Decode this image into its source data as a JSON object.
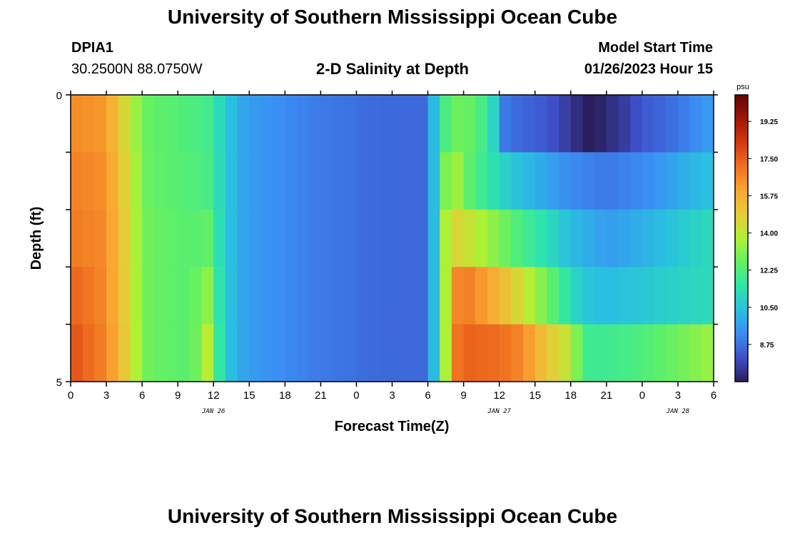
{
  "header": {
    "title": "University of Southern Mississippi Ocean Cube",
    "station_id": "DPIA1",
    "station_coords": "30.2500N  88.0750W",
    "plot_title": "2-D Salinity at Depth",
    "model_start_label": "Model Start Time",
    "model_start_value": "01/26/2023 Hour 15"
  },
  "footer": {
    "title": "University of Southern Mississippi Ocean Cube"
  },
  "chart_data": {
    "type": "heatmap",
    "title": "2-D Salinity at Depth",
    "xlabel": "Forecast Time(Z)",
    "ylabel": "Depth (ft)",
    "x_hours_range": [
      0,
      54
    ],
    "x_tick_labels": [
      "0",
      "3",
      "6",
      "9",
      "12",
      "15",
      "18",
      "21",
      "0",
      "3",
      "6",
      "9",
      "12",
      "15",
      "18",
      "21",
      "0",
      "3",
      "6"
    ],
    "x_tick_hours": [
      0,
      3,
      6,
      9,
      12,
      15,
      18,
      21,
      24,
      27,
      30,
      33,
      36,
      39,
      42,
      45,
      48,
      51,
      54
    ],
    "date_labels": [
      {
        "hour": 12,
        "label": "JAN 26"
      },
      {
        "hour": 36,
        "label": "JAN 27"
      },
      {
        "hour": 51,
        "label": "JAN 28"
      }
    ],
    "y_range": [
      0,
      5
    ],
    "y_tick_labels": [
      "0",
      "5"
    ],
    "depth_bins": 5,
    "colorbar": {
      "unit": "psu",
      "min": 7.0,
      "max": 20.5,
      "tick_values": [
        8.75,
        10.5,
        12.25,
        14.0,
        15.75,
        17.5,
        19.25
      ],
      "tick_labels": [
        "8.75",
        "10.50",
        "12.25",
        "14.00",
        "15.75",
        "17.50",
        "19.25"
      ],
      "stops": [
        "#2a1e5c",
        "#3f4fc8",
        "#3c8cf4",
        "#29c0e0",
        "#2ee6a8",
        "#62f064",
        "#b2f034",
        "#e6cc38",
        "#f9a832",
        "#f07020",
        "#d23a0e",
        "#a01806",
        "#600404"
      ]
    },
    "salinity_rows": [
      {
        "depth_layer": "0-1 ft",
        "hours": [
          0,
          3,
          5,
          6,
          7,
          10,
          12,
          12.6,
          13.4,
          14.2,
          15,
          20,
          26,
          30,
          30.6,
          31.2,
          31.8,
          32.4,
          34,
          35.5,
          36.2,
          37,
          40,
          42,
          43.5,
          45,
          46.5,
          48,
          50,
          52,
          54
        ],
        "values": [
          16.6,
          16.3,
          14.0,
          12.8,
          12.6,
          12.2,
          11.9,
          11.0,
          10.4,
          9.9,
          9.6,
          9.0,
          8.6,
          8.6,
          10.6,
          13.3,
          11.0,
          12.8,
          12.6,
          11.0,
          9.0,
          8.7,
          8.3,
          7.6,
          6.9,
          7.3,
          7.7,
          8.3,
          8.6,
          9.1,
          9.7
        ]
      },
      {
        "depth_layer": "1-2 ft",
        "hours": [
          0,
          3,
          5,
          6,
          7,
          10,
          12,
          12.6,
          13.4,
          14.2,
          15,
          20,
          26,
          30,
          30.6,
          31.2,
          31.8,
          32.4,
          33,
          36,
          38,
          40,
          42,
          45,
          48,
          50,
          52,
          54
        ],
        "values": [
          16.8,
          16.5,
          14.2,
          12.9,
          12.6,
          12.3,
          12.0,
          11.0,
          10.4,
          9.9,
          9.6,
          9.0,
          8.6,
          8.6,
          10.6,
          12.8,
          13.2,
          13.6,
          12.8,
          11.0,
          10.3,
          9.8,
          9.2,
          8.9,
          9.2,
          9.6,
          10.1,
          10.5
        ]
      },
      {
        "depth_layer": "2-3 ft",
        "hours": [
          0,
          3,
          5,
          6,
          7,
          10,
          12,
          12.6,
          13.4,
          14.2,
          15,
          20,
          26,
          30,
          30.6,
          31.2,
          31.8,
          32.4,
          33,
          36,
          38,
          40,
          42,
          45,
          48,
          51,
          54
        ],
        "values": [
          16.9,
          16.6,
          14.3,
          13.0,
          12.7,
          12.4,
          12.6,
          11.0,
          10.4,
          9.9,
          9.6,
          9.0,
          8.6,
          8.6,
          10.6,
          12.8,
          14.6,
          14.6,
          14.4,
          13.0,
          12.0,
          11.2,
          10.3,
          9.6,
          10.0,
          10.6,
          11.2
        ]
      },
      {
        "depth_layer": "3-4 ft",
        "hours": [
          0,
          3,
          5,
          6,
          7,
          10,
          11,
          12,
          12.6,
          13.4,
          14.2,
          15,
          20,
          26,
          30,
          30.6,
          31.2,
          31.8,
          32.4,
          33,
          36,
          38,
          40,
          42,
          43,
          45,
          48,
          51,
          54
        ],
        "values": [
          17.4,
          16.6,
          14.4,
          13.0,
          12.7,
          12.4,
          13.0,
          13.4,
          11.0,
          10.4,
          9.9,
          9.6,
          9.0,
          8.6,
          8.6,
          10.6,
          12.8,
          14.6,
          16.6,
          17.0,
          15.6,
          14.2,
          12.8,
          11.2,
          10.6,
          10.3,
          10.6,
          10.9,
          11.2
        ]
      },
      {
        "depth_layer": "4-5 ft",
        "hours": [
          0,
          3,
          5,
          6,
          7,
          10,
          11,
          12,
          12.6,
          13.4,
          14.2,
          15,
          20,
          26,
          30,
          30.6,
          31.2,
          31.8,
          32.4,
          33,
          36,
          38,
          40,
          42,
          43,
          44,
          46,
          48,
          50,
          52,
          54
        ],
        "values": [
          17.8,
          16.7,
          14.5,
          13.0,
          12.7,
          12.4,
          13.2,
          14.5,
          11.0,
          10.4,
          9.9,
          9.6,
          9.0,
          8.6,
          8.6,
          10.6,
          12.8,
          14.6,
          17.0,
          17.4,
          17.2,
          16.6,
          15.0,
          14.0,
          12.0,
          11.8,
          12.0,
          12.2,
          12.6,
          13.0,
          13.5
        ]
      }
    ]
  }
}
